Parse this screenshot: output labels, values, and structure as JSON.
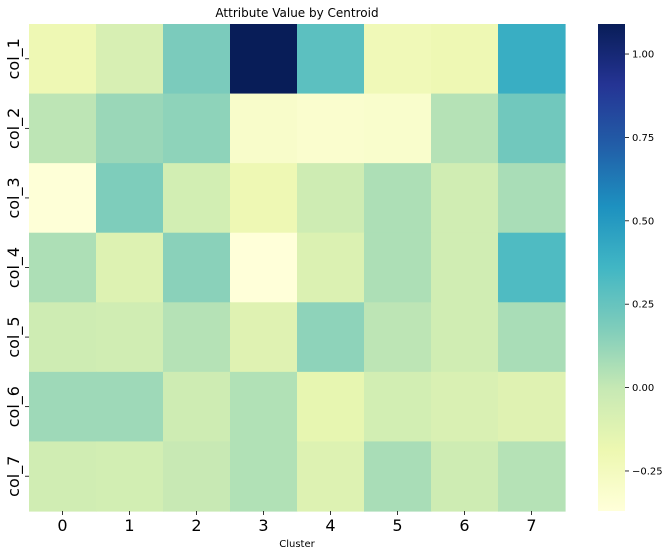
{
  "chart_data": {
    "type": "heatmap",
    "title": "Attribute Value by Centroid",
    "xlabel": "Cluster",
    "ylabel": "",
    "x_categories": [
      "0",
      "1",
      "2",
      "3",
      "4",
      "5",
      "6",
      "7"
    ],
    "y_categories": [
      "col_1",
      "col_2",
      "col_3",
      "col_4",
      "col_5",
      "col_6",
      "col_7"
    ],
    "values": [
      [
        -0.2,
        -0.08,
        0.19,
        1.09,
        0.28,
        -0.22,
        -0.2,
        0.4
      ],
      [
        0.02,
        0.11,
        0.14,
        -0.3,
        -0.32,
        -0.31,
        0.04,
        0.22
      ],
      [
        -0.36,
        0.18,
        -0.06,
        -0.2,
        -0.04,
        0.06,
        -0.05,
        0.07
      ],
      [
        0.06,
        -0.11,
        0.15,
        -0.37,
        -0.1,
        0.06,
        -0.05,
        0.32
      ],
      [
        -0.04,
        -0.05,
        0.04,
        -0.12,
        0.14,
        0.02,
        -0.05,
        0.07
      ],
      [
        0.1,
        0.1,
        -0.04,
        0.05,
        -0.16,
        -0.06,
        -0.09,
        -0.12
      ],
      [
        -0.05,
        -0.06,
        -0.01,
        0.05,
        -0.11,
        0.07,
        -0.04,
        0.04
      ]
    ],
    "colormap": "YlGnBu",
    "vmin": -0.37,
    "vmax": 1.09,
    "colorbar": {
      "ticks": [
        -0.25,
        0.0,
        0.25,
        0.5,
        0.75,
        1.0
      ],
      "tick_labels": [
        "−0.25",
        "0.00",
        "0.25",
        "0.50",
        "0.75",
        "1.00"
      ]
    },
    "grid": false
  }
}
